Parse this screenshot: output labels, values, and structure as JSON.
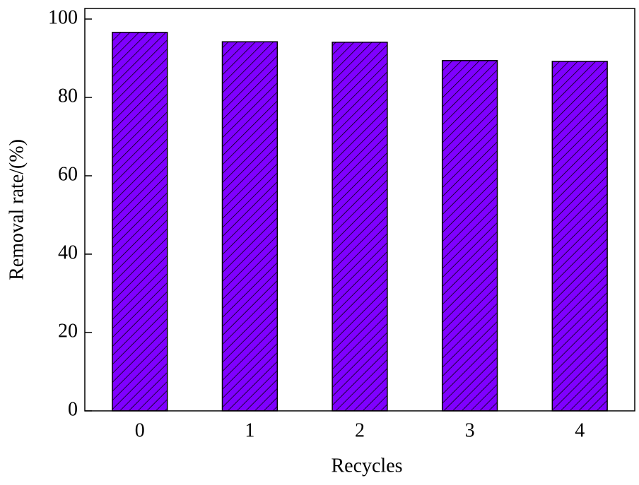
{
  "chart_data": {
    "type": "bar",
    "x_label": "Recycles",
    "y_label": "Removal rate/(%)",
    "categories": [
      "0",
      "1",
      "2",
      "3",
      "4"
    ],
    "values": [
      96.6,
      94.2,
      94.1,
      89.4,
      89.2
    ],
    "color": "#7f00ff",
    "hatch": "\\\\",
    "ylim": [
      0,
      102.7
    ],
    "yticks": [
      0,
      20,
      40,
      60,
      80,
      100
    ],
    "grid": false
  }
}
